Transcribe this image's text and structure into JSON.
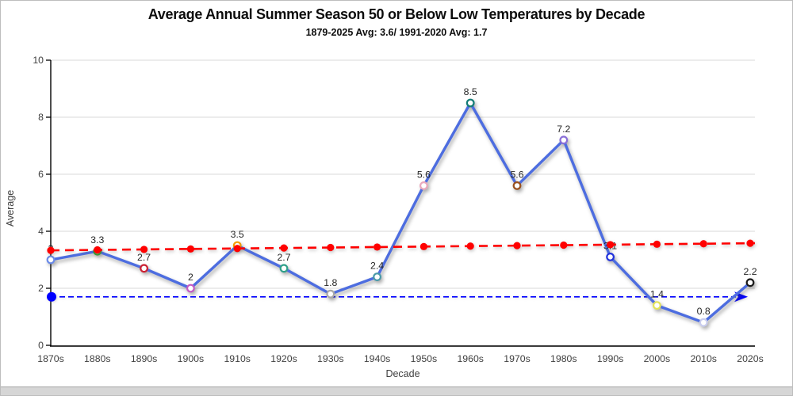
{
  "chart_data": {
    "type": "line",
    "title": "Average Annual Summer Season 50 or Below Low Temperatures by Decade",
    "subtitle": "1879-2025 Avg: 3.6/ 1991-2020 Avg: 1.7",
    "xlabel": "Decade",
    "ylabel": "Average",
    "categories": [
      "1870s",
      "1880s",
      "1890s",
      "1900s",
      "1910s",
      "1920s",
      "1930s",
      "1940s",
      "1950s",
      "1960s",
      "1970s",
      "1980s",
      "1990s",
      "2000s",
      "2010s",
      "2020s"
    ],
    "series": [
      {
        "name": "decade-average",
        "values": [
          3,
          3.3,
          2.7,
          2,
          3.5,
          2.7,
          1.8,
          2.4,
          5.6,
          8.5,
          5.6,
          7.2,
          3.1,
          1.4,
          0.8,
          2.2
        ],
        "labels": [
          "3",
          "3.3",
          "2.7",
          "2",
          "3.5",
          "2.7",
          "1.8",
          "2.4",
          "5.6",
          "8.5",
          "5.6",
          "7.2",
          "3.1",
          "1.4",
          "0.8",
          "2.2"
        ],
        "line_color": "#4d6de0",
        "marker_fill": "#ffffff",
        "point_colors": [
          "#6b8be8",
          "#2ca02c",
          "#cc2233",
          "#c45ac4",
          "#f59b00",
          "#2fa089",
          "#a8a8a8",
          "#4a9aa8",
          "#eaa9bd",
          "#137c76",
          "#99501e",
          "#8a6fd8",
          "#2233dd",
          "#e3e35a",
          "#c9cdee",
          "#1a1a1a"
        ]
      },
      {
        "name": "linear-trend",
        "style": "dashed",
        "color": "#ff0000",
        "start": 3.33,
        "end": 3.58
      }
    ],
    "reference_line": {
      "name": "1991-2020-average",
      "value": 1.7,
      "color": "#0000ff",
      "style": "dashed-arrow"
    },
    "ylim": [
      0,
      10
    ],
    "ytick_step": 2,
    "grid": true,
    "gridline_color": "#d9d9d9",
    "axis_color": "#000000",
    "legend": "none"
  }
}
